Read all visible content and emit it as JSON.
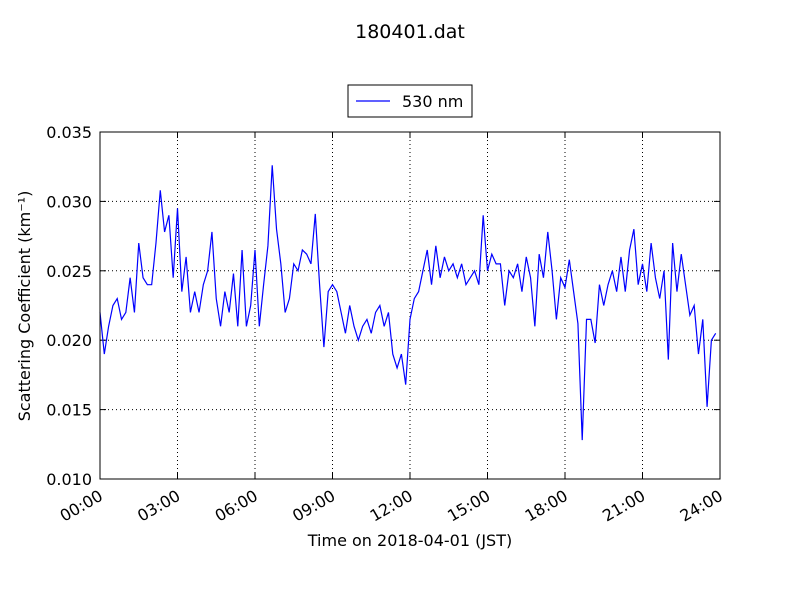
{
  "chart_data": {
    "type": "line",
    "title": "180401.dat",
    "xlabel": "Time on 2018-04-01 (JST)",
    "ylabel": "Scattering Coefficient (km⁻¹)",
    "x": [
      0,
      10,
      20,
      30,
      40,
      50,
      60,
      70,
      80,
      90,
      100,
      110,
      120,
      130,
      140,
      150,
      160,
      170,
      180,
      190,
      200,
      210,
      220,
      230,
      240,
      250,
      260,
      270,
      280,
      290,
      300,
      310,
      320,
      330,
      340,
      350,
      360,
      370,
      380,
      390,
      400,
      410,
      420,
      430,
      440,
      450,
      460,
      470,
      480,
      490,
      500,
      510,
      520,
      530,
      540,
      550,
      560,
      570,
      580,
      590,
      600,
      610,
      620,
      630,
      640,
      650,
      660,
      670,
      680,
      690,
      700,
      710,
      720,
      730,
      740,
      750,
      760,
      770,
      780,
      790,
      800,
      810,
      820,
      830,
      840,
      850,
      860,
      870,
      880,
      890,
      900,
      910,
      920,
      930,
      940,
      950,
      960,
      970,
      980,
      990,
      1000,
      1010,
      1020,
      1030,
      1040,
      1050,
      1060,
      1070,
      1080,
      1090,
      1100,
      1110,
      1120,
      1130,
      1140,
      1150,
      1160,
      1170,
      1180,
      1190,
      1200,
      1210,
      1220,
      1230,
      1240,
      1250,
      1260,
      1270,
      1280,
      1290,
      1300,
      1310,
      1320,
      1330,
      1340,
      1350,
      1360,
      1370,
      1380,
      1390,
      1400,
      1410,
      1420,
      1430
    ],
    "series": [
      {
        "name": "530 nm",
        "color": "#0000ff",
        "values": [
          0.022,
          0.019,
          0.021,
          0.0225,
          0.023,
          0.0215,
          0.022,
          0.0245,
          0.022,
          0.027,
          0.0245,
          0.024,
          0.024,
          0.027,
          0.0308,
          0.0278,
          0.029,
          0.0245,
          0.0295,
          0.0235,
          0.026,
          0.022,
          0.0235,
          0.022,
          0.024,
          0.025,
          0.0278,
          0.023,
          0.021,
          0.0235,
          0.022,
          0.0248,
          0.021,
          0.0265,
          0.021,
          0.0225,
          0.0265,
          0.021,
          0.024,
          0.0268,
          0.0326,
          0.028,
          0.0255,
          0.022,
          0.023,
          0.0255,
          0.025,
          0.0265,
          0.0262,
          0.0255,
          0.0291,
          0.024,
          0.0195,
          0.0235,
          0.024,
          0.0235,
          0.022,
          0.0205,
          0.0225,
          0.021,
          0.02,
          0.021,
          0.0215,
          0.0205,
          0.022,
          0.0225,
          0.021,
          0.022,
          0.019,
          0.018,
          0.019,
          0.0168,
          0.0215,
          0.023,
          0.0235,
          0.025,
          0.0265,
          0.024,
          0.0268,
          0.0245,
          0.026,
          0.025,
          0.0255,
          0.0245,
          0.0255,
          0.024,
          0.0245,
          0.025,
          0.024,
          0.029,
          0.025,
          0.0262,
          0.0255,
          0.0255,
          0.0225,
          0.025,
          0.0245,
          0.0255,
          0.0235,
          0.026,
          0.0245,
          0.021,
          0.0262,
          0.0245,
          0.0278,
          0.025,
          0.0215,
          0.0245,
          0.0238,
          0.0258,
          0.0235,
          0.0212,
          0.0128,
          0.0215,
          0.0215,
          0.0198,
          0.024,
          0.0225,
          0.024,
          0.025,
          0.0235,
          0.026,
          0.0235,
          0.0265,
          0.028,
          0.024,
          0.0255,
          0.0235,
          0.027,
          0.0245,
          0.023,
          0.025,
          0.0186,
          0.027,
          0.0235,
          0.0262,
          0.024,
          0.0218,
          0.0225,
          0.019,
          0.0215,
          0.0152,
          0.02,
          0.0205
        ]
      }
    ],
    "xlim": [
      0,
      1440
    ],
    "xticks": [
      {
        "value": 0,
        "label": "00:00"
      },
      {
        "value": 180,
        "label": "03:00"
      },
      {
        "value": 360,
        "label": "06:00"
      },
      {
        "value": 540,
        "label": "09:00"
      },
      {
        "value": 720,
        "label": "12:00"
      },
      {
        "value": 900,
        "label": "15:00"
      },
      {
        "value": 1080,
        "label": "18:00"
      },
      {
        "value": 1260,
        "label": "21:00"
      },
      {
        "value": 1440,
        "label": "24:00"
      }
    ],
    "ylim": [
      0.01,
      0.035
    ],
    "yticks": [
      {
        "value": 0.01,
        "label": "0.010"
      },
      {
        "value": 0.015,
        "label": "0.015"
      },
      {
        "value": 0.02,
        "label": "0.020"
      },
      {
        "value": 0.025,
        "label": "0.025"
      },
      {
        "value": 0.03,
        "label": "0.030"
      },
      {
        "value": 0.035,
        "label": "0.035"
      }
    ],
    "grid": true,
    "legend": "upper center"
  }
}
